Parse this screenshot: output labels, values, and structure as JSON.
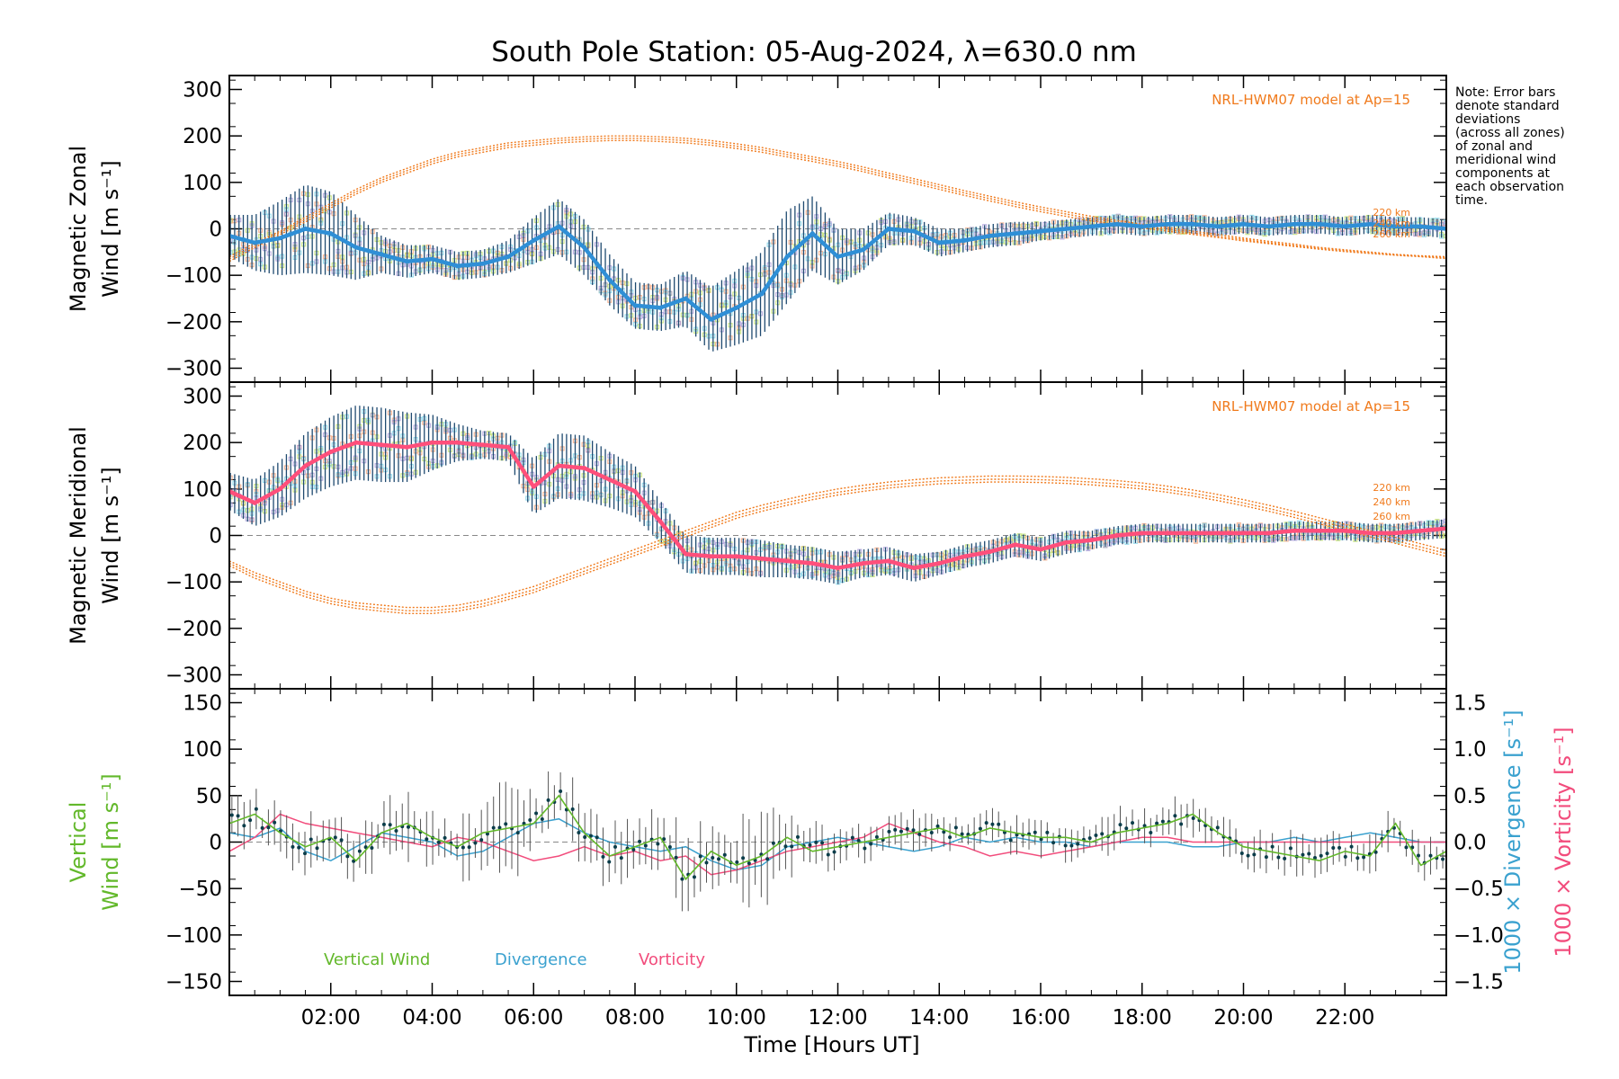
{
  "title": "South Pole Station: 05-Aug-2024, λ=630.0 nm",
  "note": [
    "Note: Error bars",
    "denote standard",
    "deviations",
    "(across all zones)",
    "of zonal and",
    "meridional wind",
    "components at",
    "each observation",
    "time."
  ],
  "colors": {
    "zonal": "#2f8fd6",
    "zonal_dark": "#1a3fd0",
    "meridional": "#ff4f7b",
    "model": "#f07a1c",
    "errorbar": "#1f4a70",
    "scatter_purple": "#a89ad8",
    "scatter_orange": "#f4a37a",
    "scatter_green": "#bfe06a",
    "scatter_cyan": "#7fd4ea",
    "vertical": "#62b82a",
    "divergence": "#3aa1cf",
    "vorticity": "#f24c7c",
    "dashed": "#888888"
  },
  "chart_data": [
    {
      "type": "line",
      "id": "zonal",
      "ylabel": [
        "Magnetic Zonal",
        "Wind [m s⁻¹]"
      ],
      "ylim": [
        -330,
        330
      ],
      "yticks": [
        300,
        200,
        100,
        0,
        -100,
        -200,
        -300
      ],
      "model_label": "NRL-HWM07 model at Ap=15",
      "model_heights": [
        "220 km",
        "240 km",
        "260 km"
      ],
      "x": [
        0.0,
        0.5,
        1.0,
        1.5,
        2.0,
        2.5,
        3.0,
        3.5,
        4.0,
        4.5,
        5.0,
        5.5,
        6.0,
        6.5,
        7.0,
        7.5,
        8.0,
        8.5,
        9.0,
        9.5,
        10.0,
        10.5,
        11.0,
        11.5,
        12.0,
        12.5,
        13.0,
        13.5,
        14.0,
        14.5,
        15.0,
        15.5,
        16.0,
        16.5,
        17.0,
        17.5,
        18.0,
        18.5,
        19.0,
        19.5,
        20.0,
        20.5,
        21.0,
        21.5,
        22.0,
        22.5,
        23.0,
        23.5,
        24.0
      ],
      "series": [
        {
          "name": "Zonal wind",
          "values": [
            -15,
            -30,
            -20,
            0,
            -10,
            -40,
            -55,
            -70,
            -65,
            -80,
            -75,
            -60,
            -25,
            5,
            -40,
            -110,
            -165,
            -170,
            -150,
            -195,
            -170,
            -140,
            -60,
            -10,
            -60,
            -45,
            0,
            -5,
            -30,
            -25,
            -15,
            -10,
            -5,
            0,
            5,
            10,
            5,
            10,
            10,
            5,
            10,
            5,
            10,
            10,
            5,
            10,
            5,
            5,
            0
          ]
        },
        {
          "name": "Std deviation",
          "values": [
            45,
            60,
            80,
            95,
            90,
            70,
            40,
            35,
            30,
            30,
            30,
            35,
            50,
            60,
            60,
            55,
            50,
            50,
            60,
            70,
            80,
            90,
            100,
            80,
            60,
            45,
            35,
            30,
            30,
            25,
            25,
            25,
            20,
            20,
            20,
            20,
            20,
            20,
            20,
            20,
            20,
            20,
            20,
            20,
            20,
            20,
            20,
            20,
            20
          ]
        }
      ],
      "model": [
        {
          "name": "220 km",
          "values": [
            -60,
            -30,
            -5,
            25,
            55,
            85,
            110,
            130,
            150,
            165,
            175,
            185,
            190,
            195,
            198,
            200,
            200,
            198,
            195,
            190,
            183,
            175,
            165,
            155,
            145,
            133,
            120,
            108,
            95,
            82,
            70,
            58,
            47,
            37,
            27,
            18,
            10,
            3,
            -5,
            -12,
            -20,
            -27,
            -33,
            -40,
            -45,
            -50,
            -55,
            -58,
            -60
          ]
        },
        {
          "name": "240 km",
          "values": [
            -65,
            -35,
            -8,
            20,
            50,
            80,
            105,
            125,
            145,
            160,
            170,
            180,
            185,
            190,
            193,
            195,
            195,
            193,
            190,
            185,
            178,
            170,
            160,
            150,
            140,
            128,
            115,
            103,
            90,
            77,
            65,
            53,
            42,
            32,
            22,
            14,
            6,
            -1,
            -9,
            -16,
            -23,
            -30,
            -36,
            -42,
            -47,
            -52,
            -56,
            -59,
            -62
          ]
        },
        {
          "name": "260 km",
          "values": [
            -70,
            -40,
            -12,
            15,
            45,
            75,
            100,
            120,
            140,
            155,
            165,
            175,
            180,
            185,
            188,
            190,
            190,
            188,
            185,
            180,
            173,
            165,
            155,
            145,
            135,
            123,
            110,
            98,
            85,
            72,
            60,
            48,
            37,
            27,
            17,
            10,
            2,
            -5,
            -12,
            -19,
            -26,
            -32,
            -38,
            -44,
            -49,
            -53,
            -57,
            -60,
            -64
          ]
        }
      ]
    },
    {
      "type": "line",
      "id": "meridional",
      "ylabel": [
        "Magnetic Meridional",
        "Wind [m s⁻¹]"
      ],
      "ylim": [
        -330,
        330
      ],
      "yticks": [
        300,
        200,
        100,
        0,
        -100,
        -200,
        -300
      ],
      "model_label": "NRL-HWM07 model at Ap=15",
      "model_heights": [
        "220 km",
        "240 km",
        "260 km"
      ],
      "x": [
        0.0,
        0.5,
        1.0,
        1.5,
        2.0,
        2.5,
        3.0,
        3.5,
        4.0,
        4.5,
        5.0,
        5.5,
        6.0,
        6.5,
        7.0,
        7.5,
        8.0,
        8.5,
        9.0,
        9.5,
        10.0,
        10.5,
        11.0,
        11.5,
        12.0,
        12.5,
        13.0,
        13.5,
        14.0,
        14.5,
        15.0,
        15.5,
        16.0,
        16.5,
        17.0,
        17.5,
        18.0,
        18.5,
        19.0,
        19.5,
        20.0,
        20.5,
        21.0,
        21.5,
        22.0,
        22.5,
        23.0,
        23.5,
        24.0
      ],
      "series": [
        {
          "name": "Meridional wind",
          "values": [
            95,
            70,
            100,
            150,
            180,
            200,
            195,
            190,
            200,
            200,
            195,
            190,
            105,
            150,
            145,
            120,
            95,
            30,
            -40,
            -45,
            -45,
            -50,
            -55,
            -60,
            -70,
            -60,
            -55,
            -70,
            -60,
            -45,
            -35,
            -20,
            -30,
            -15,
            -10,
            0,
            5,
            5,
            5,
            5,
            5,
            5,
            10,
            10,
            10,
            5,
            5,
            10,
            15
          ]
        },
        {
          "name": "Std deviation",
          "values": [
            40,
            50,
            60,
            70,
            75,
            80,
            80,
            75,
            60,
            40,
            30,
            30,
            60,
            70,
            70,
            60,
            55,
            45,
            40,
            40,
            40,
            40,
            35,
            35,
            35,
            30,
            30,
            30,
            25,
            25,
            25,
            25,
            25,
            25,
            20,
            20,
            20,
            20,
            20,
            20,
            20,
            20,
            20,
            20,
            20,
            20,
            20,
            20,
            20
          ]
        }
      ],
      "model": [
        {
          "name": "220 km",
          "values": [
            -55,
            -80,
            -100,
            -120,
            -135,
            -145,
            -150,
            -155,
            -155,
            -150,
            -140,
            -125,
            -110,
            -90,
            -70,
            -50,
            -30,
            -10,
            10,
            30,
            50,
            65,
            78,
            90,
            100,
            108,
            115,
            120,
            124,
            126,
            128,
            128,
            127,
            125,
            122,
            118,
            113,
            106,
            98,
            88,
            77,
            65,
            52,
            38,
            24,
            10,
            -4,
            -18,
            -32
          ]
        },
        {
          "name": "240 km",
          "values": [
            -60,
            -86,
            -106,
            -126,
            -141,
            -151,
            -157,
            -162,
            -162,
            -157,
            -147,
            -132,
            -117,
            -97,
            -77,
            -57,
            -37,
            -17,
            3,
            23,
            43,
            58,
            71,
            83,
            93,
            101,
            108,
            113,
            117,
            119,
            121,
            121,
            120,
            118,
            115,
            111,
            106,
            99,
            91,
            81,
            70,
            58,
            45,
            31,
            17,
            3,
            -11,
            -25,
            -39
          ]
        },
        {
          "name": "260 km",
          "values": [
            -65,
            -92,
            -112,
            -132,
            -147,
            -157,
            -163,
            -168,
            -168,
            -163,
            -153,
            -138,
            -123,
            -103,
            -83,
            -63,
            -43,
            -23,
            -3,
            17,
            37,
            52,
            65,
            77,
            87,
            95,
            102,
            107,
            111,
            113,
            115,
            115,
            114,
            112,
            109,
            105,
            100,
            93,
            85,
            75,
            64,
            52,
            39,
            25,
            11,
            -3,
            -17,
            -31,
            -45
          ]
        }
      ]
    },
    {
      "type": "line",
      "id": "vertical",
      "ylabel": [
        "Vertical",
        "Wind [m s⁻¹]"
      ],
      "ylabel_colors": [
        "#62b82a"
      ],
      "ylim": [
        -165,
        165
      ],
      "yticks": [
        150,
        100,
        50,
        0,
        -50,
        -100,
        -150
      ],
      "y2label_div": "1000 × Divergence [s⁻¹]",
      "y2label_vor": "1000 × Vorticity [s⁻¹]",
      "y2lim": [
        -1.65,
        1.65
      ],
      "y2ticks": [
        1.5,
        1.0,
        0.5,
        0.0,
        -0.5,
        -1.0,
        -1.5
      ],
      "legend": [
        "Vertical Wind",
        "Divergence",
        "Vorticity"
      ],
      "x": [
        0.0,
        0.5,
        1.0,
        1.5,
        2.0,
        2.5,
        3.0,
        3.5,
        4.0,
        4.5,
        5.0,
        5.5,
        6.0,
        6.5,
        7.0,
        7.5,
        8.0,
        8.5,
        9.0,
        9.5,
        10.0,
        10.5,
        11.0,
        11.5,
        12.0,
        12.5,
        13.0,
        13.5,
        14.0,
        14.5,
        15.0,
        15.5,
        16.0,
        16.5,
        17.0,
        17.5,
        18.0,
        18.5,
        19.0,
        19.5,
        20.0,
        20.5,
        21.0,
        21.5,
        22.0,
        22.5,
        23.0,
        23.5,
        24.0
      ],
      "series": [
        {
          "name": "Vertical Wind",
          "axis": "left",
          "values": [
            20,
            30,
            10,
            -5,
            5,
            -20,
            10,
            20,
            5,
            -5,
            10,
            15,
            20,
            50,
            10,
            -15,
            -5,
            5,
            -40,
            -10,
            -25,
            -15,
            5,
            -10,
            -5,
            0,
            5,
            10,
            15,
            5,
            15,
            10,
            5,
            5,
            0,
            10,
            15,
            20,
            30,
            10,
            -5,
            -10,
            -15,
            -20,
            -10,
            -15,
            20,
            -25,
            -10
          ]
        },
        {
          "name": "Divergence",
          "axis": "right",
          "values": [
            0.1,
            0.05,
            0.15,
            -0.1,
            -0.2,
            -0.05,
            0.1,
            0.05,
            0.0,
            -0.15,
            -0.1,
            0.05,
            0.2,
            0.25,
            0.1,
            0.0,
            -0.05,
            -0.1,
            -0.05,
            -0.2,
            -0.3,
            -0.25,
            -0.05,
            0.0,
            0.05,
            0.0,
            -0.05,
            -0.1,
            -0.05,
            0.05,
            0.0,
            0.05,
            0.0,
            0.0,
            -0.05,
            0.0,
            0.0,
            0.0,
            -0.05,
            -0.05,
            0.0,
            0.0,
            0.05,
            0.0,
            0.05,
            0.1,
            0.05,
            0.0,
            0.0
          ]
        },
        {
          "name": "Vorticity",
          "axis": "right",
          "values": [
            -0.1,
            0.05,
            0.3,
            0.2,
            0.15,
            0.1,
            0.05,
            0.0,
            -0.05,
            0.05,
            0.0,
            -0.1,
            -0.2,
            -0.15,
            -0.05,
            -0.15,
            -0.1,
            -0.2,
            -0.15,
            -0.35,
            -0.3,
            -0.2,
            -0.1,
            -0.05,
            0.0,
            0.05,
            0.2,
            0.1,
            0.0,
            -0.05,
            -0.15,
            -0.1,
            -0.15,
            -0.1,
            -0.05,
            0.0,
            0.05,
            0.05,
            0.0,
            0.0,
            0.0,
            0.0,
            0.0,
            0.0,
            0.0,
            0.0,
            0.0,
            0.0,
            0.0
          ]
        },
        {
          "name": "Vertical Std deviation",
          "axis": "left",
          "values": [
            15,
            20,
            18,
            22,
            25,
            20,
            18,
            30,
            20,
            25,
            30,
            40,
            20,
            30,
            20,
            25,
            25,
            20,
            35,
            25,
            30,
            45,
            25,
            20,
            18,
            15,
            15,
            15,
            15,
            15,
            15,
            15,
            15,
            15,
            15,
            15,
            15,
            15,
            15,
            15,
            15,
            15,
            15,
            15,
            15,
            15,
            15,
            15,
            15
          ]
        }
      ]
    }
  ],
  "xaxis": {
    "label": "Time [Hours UT]",
    "xlim": [
      0,
      24
    ],
    "ticks": [
      2,
      4,
      6,
      8,
      10,
      12,
      14,
      16,
      18,
      20,
      22
    ],
    "tick_labels": [
      "02:00",
      "04:00",
      "06:00",
      "08:00",
      "10:00",
      "12:00",
      "14:00",
      "16:00",
      "18:00",
      "20:00",
      "22:00"
    ]
  }
}
